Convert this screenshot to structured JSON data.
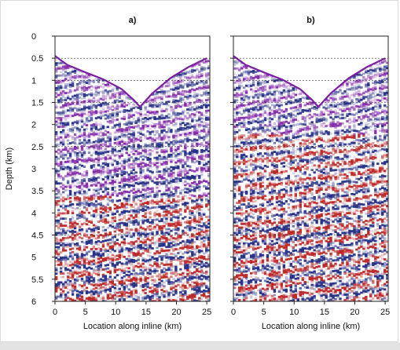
{
  "figure": {
    "bottom_strip_color": "#e3e3e3"
  },
  "chart_data": [
    {
      "type": "heatmap",
      "panel_label": "a)",
      "xlabel": "Location along inline (km)",
      "ylabel": "Depth (km)",
      "x_ticks": [
        0,
        5,
        10,
        15,
        20,
        25
      ],
      "y_ticks": [
        0,
        0.5,
        1,
        1.5,
        2,
        2.5,
        3,
        3.5,
        4,
        4.5,
        5,
        5.5,
        6
      ],
      "xlim": [
        0,
        25.5
      ],
      "ylim": [
        0,
        6
      ],
      "y_inverted": true,
      "reference_depths": [
        0.5,
        1.0,
        1.5,
        2.5,
        4.5
      ],
      "water_bottom_profile": {
        "x": [
          0,
          2,
          5,
          8,
          11,
          13,
          14,
          16,
          19,
          22,
          25
        ],
        "depth": [
          0.45,
          0.65,
          0.82,
          0.98,
          1.2,
          1.45,
          1.6,
          1.3,
          0.95,
          0.7,
          0.5
        ]
      },
      "colormap": [
        "#1a237e",
        "#ffffff",
        "#b71c1c"
      ],
      "secondary_color": "#7b1fa2"
    },
    {
      "type": "heatmap",
      "panel_label": "b)",
      "xlabel": "Location along inline (km)",
      "ylabel": "",
      "x_ticks": [
        0,
        5,
        10,
        15,
        20,
        25
      ],
      "y_ticks": [
        0,
        0.5,
        1,
        1.5,
        2,
        2.5,
        3,
        3.5,
        4,
        4.5,
        5,
        5.5,
        6
      ],
      "xlim": [
        0,
        25.5
      ],
      "ylim": [
        0,
        6
      ],
      "y_inverted": true,
      "reference_depths": [
        0.5,
        1.0,
        1.5,
        2.5,
        4.5
      ],
      "water_bottom_profile": {
        "x": [
          0,
          2,
          5,
          8,
          11,
          13,
          14,
          16,
          19,
          22,
          25
        ],
        "depth": [
          0.45,
          0.65,
          0.82,
          0.98,
          1.2,
          1.45,
          1.6,
          1.3,
          0.95,
          0.7,
          0.5
        ]
      },
      "colormap": [
        "#1a237e",
        "#ffffff",
        "#b71c1c"
      ],
      "secondary_color": "#7b1fa2"
    }
  ]
}
